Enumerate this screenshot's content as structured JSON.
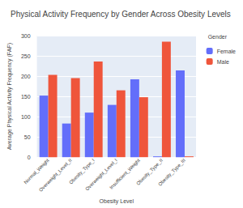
{
  "chart_data": {
    "type": "bar",
    "title": "Physical Activity Frequency by Gender Across Obesity Levels",
    "x_label": "Obesity Level",
    "y_label": "Average Physical Activity Frequency (FAF)",
    "legend_title": "Gender",
    "categories": [
      "Normal_Weight",
      "Overweight_Level_II",
      "Obesity_Type_I",
      "Overweight_Level_I",
      "Insufficient_Weight",
      "Obesity_Type_II",
      "Obesity_Type_III"
    ],
    "series": [
      {
        "name": "Female",
        "color": "#636efa",
        "values": [
          152,
          83,
          110,
          129,
          192,
          2,
          214
        ]
      },
      {
        "name": "Male",
        "color": "#ef553b",
        "values": [
          203,
          195,
          236,
          165,
          148,
          285,
          2
        ]
      }
    ],
    "ylim": [
      0,
      300
    ],
    "yticks": [
      0,
      50,
      100,
      150,
      200,
      250,
      300
    ],
    "grid": true,
    "legend": "top-right"
  }
}
